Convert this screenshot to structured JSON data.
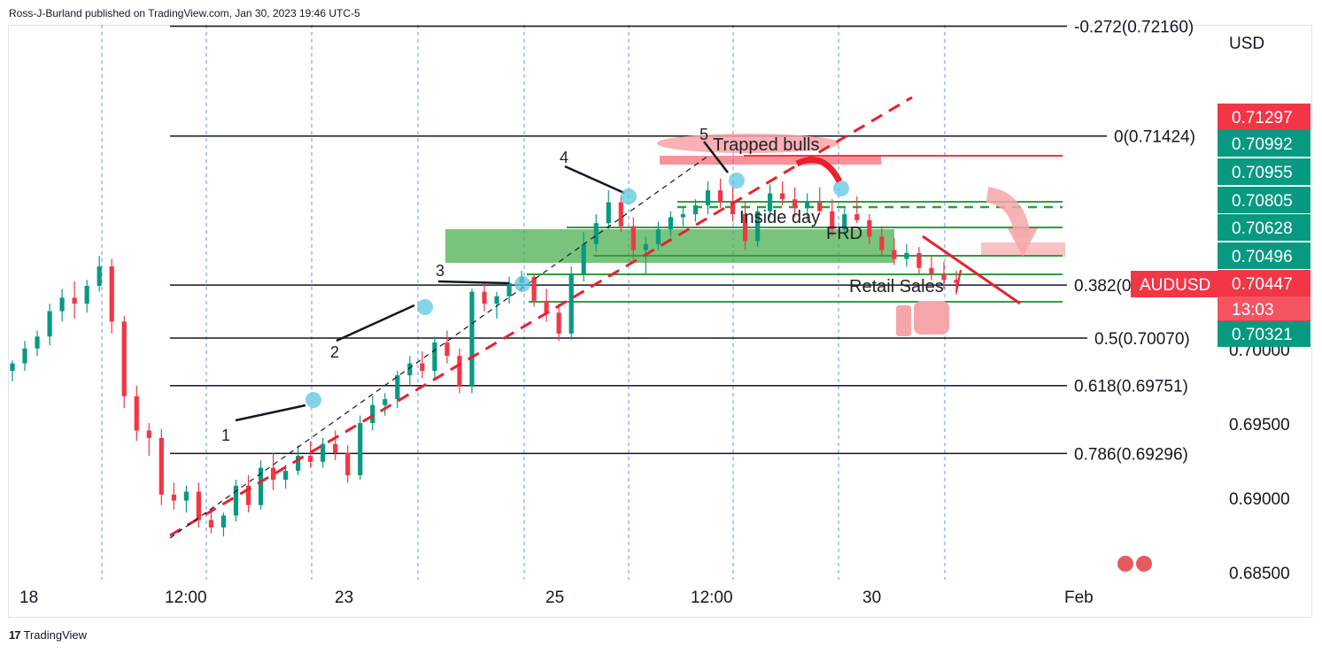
{
  "header": {
    "publisher": "Ross-J-Burland published on TradingView.com, Jan 30, 2023 19:46 UTC-5"
  },
  "footer": {
    "brand": "TradingView"
  },
  "chart_data": {
    "type": "candlestick",
    "symbol": "AUDUSD",
    "currency": "USD",
    "ylim": [
      0.6845,
      0.7217
    ],
    "y_ticks": [
      "0.68500",
      "0.69000",
      "0.69500",
      "0.70000"
    ],
    "x_ticks": [
      {
        "label": "18",
        "t": 0
      },
      {
        "label": "12:00",
        "t": 0.12
      },
      {
        "label": "23",
        "t": 0.25
      },
      {
        "label": "25",
        "t": 0.41
      },
      {
        "label": "12:00",
        "t": 0.53
      },
      {
        "label": "30",
        "t": 0.665
      },
      {
        "label": "Feb",
        "t": 0.82
      }
    ],
    "fib_levels": [
      {
        "label": "-0.272(0.72160)",
        "value": 0.7216
      },
      {
        "label": "0(0.71424)",
        "value": 0.71424
      },
      {
        "label": "0.382(0.70...",
        "value": 0.70425
      },
      {
        "label": "0.5(0.70070)",
        "value": 0.7007
      },
      {
        "label": "0.618(0.69751)",
        "value": 0.69751
      },
      {
        "label": "0.786(0.69296)",
        "value": 0.69296
      }
    ],
    "price_tags": [
      {
        "label": "0.71297",
        "value": 0.71297,
        "color": "#f23645"
      },
      {
        "label": "0.70992",
        "value": 0.70992,
        "color": "#089981"
      },
      {
        "label": "0.70955",
        "value": 0.70955,
        "color": "#089981"
      },
      {
        "label": "0.70805",
        "value": 0.70805,
        "color": "#089981"
      },
      {
        "label": "0.70628",
        "value": 0.70628,
        "color": "#089981"
      },
      {
        "label": "0.70496",
        "value": 0.70496,
        "color": "#089981"
      },
      {
        "label": "0.70447",
        "value": 0.70447,
        "color": "#f23645"
      },
      {
        "label": "0.70321",
        "value": 0.70321,
        "color": "#089981"
      }
    ],
    "countdown": "13:03",
    "annotations": [
      "Trapped bulls",
      "Inside day",
      "FRD",
      "Retail Sales"
    ],
    "wave_labels": [
      "1",
      "2",
      "3",
      "4",
      "5"
    ],
    "ohlc": [
      [
        0.6985,
        0.6992,
        0.6978,
        0.699
      ],
      [
        0.699,
        0.7005,
        0.6985,
        0.7
      ],
      [
        0.7,
        0.7012,
        0.6995,
        0.7008
      ],
      [
        0.7008,
        0.703,
        0.7002,
        0.7025
      ],
      [
        0.7025,
        0.704,
        0.7018,
        0.7034
      ],
      [
        0.7034,
        0.7045,
        0.702,
        0.703
      ],
      [
        0.703,
        0.7046,
        0.7024,
        0.7042
      ],
      [
        0.7042,
        0.7062,
        0.7038,
        0.7055
      ],
      [
        0.7055,
        0.706,
        0.701,
        0.7018
      ],
      [
        0.7018,
        0.7022,
        0.696,
        0.6968
      ],
      [
        0.6968,
        0.6975,
        0.6938,
        0.6945
      ],
      [
        0.6945,
        0.695,
        0.6928,
        0.694
      ],
      [
        0.694,
        0.6946,
        0.6895,
        0.6902
      ],
      [
        0.6902,
        0.691,
        0.6892,
        0.6898
      ],
      [
        0.6898,
        0.6908,
        0.689,
        0.6904
      ],
      [
        0.6904,
        0.691,
        0.688,
        0.6885
      ],
      [
        0.6885,
        0.6892,
        0.6876,
        0.688
      ],
      [
        0.688,
        0.689,
        0.6874,
        0.6888
      ],
      [
        0.6888,
        0.6912,
        0.6884,
        0.6908
      ],
      [
        0.6908,
        0.6915,
        0.689,
        0.6895
      ],
      [
        0.6895,
        0.6925,
        0.6892,
        0.692
      ],
      [
        0.692,
        0.693,
        0.6905,
        0.6912
      ],
      [
        0.6912,
        0.6922,
        0.6906,
        0.6918
      ],
      [
        0.6918,
        0.6935,
        0.6915,
        0.6928
      ],
      [
        0.6928,
        0.6938,
        0.692,
        0.6924
      ],
      [
        0.6924,
        0.694,
        0.692,
        0.6936
      ],
      [
        0.6936,
        0.6945,
        0.6925,
        0.693
      ],
      [
        0.693,
        0.6935,
        0.691,
        0.6915
      ],
      [
        0.6915,
        0.6955,
        0.6912,
        0.695
      ],
      [
        0.695,
        0.6968,
        0.6945,
        0.6962
      ],
      [
        0.6962,
        0.697,
        0.6955,
        0.6966
      ],
      [
        0.6966,
        0.6985,
        0.696,
        0.6982
      ],
      [
        0.6982,
        0.6995,
        0.6975,
        0.699
      ],
      [
        0.699,
        0.6998,
        0.698,
        0.6985
      ],
      [
        0.6985,
        0.7008,
        0.698,
        0.7004
      ],
      [
        0.7004,
        0.7012,
        0.699,
        0.6995
      ],
      [
        0.6995,
        0.7,
        0.697,
        0.6975
      ],
      [
        0.6975,
        0.704,
        0.697,
        0.7038
      ],
      [
        0.7038,
        0.7045,
        0.7025,
        0.703
      ],
      [
        0.703,
        0.7038,
        0.702,
        0.7035
      ],
      [
        0.7035,
        0.7048,
        0.703,
        0.7044
      ],
      [
        0.7044,
        0.7052,
        0.7038,
        0.7048
      ],
      [
        0.7048,
        0.705,
        0.7028,
        0.7032
      ],
      [
        0.7032,
        0.704,
        0.7018,
        0.7024
      ],
      [
        0.7024,
        0.703,
        0.7005,
        0.701
      ],
      [
        0.701,
        0.7055,
        0.7006,
        0.705
      ],
      [
        0.705,
        0.7078,
        0.7045,
        0.707
      ],
      [
        0.707,
        0.709,
        0.7065,
        0.7084
      ],
      [
        0.7084,
        0.7106,
        0.708,
        0.7098
      ],
      [
        0.7098,
        0.7102,
        0.7078,
        0.7082
      ],
      [
        0.7082,
        0.7088,
        0.706,
        0.7066
      ],
      [
        0.7066,
        0.7075,
        0.705,
        0.707
      ],
      [
        0.707,
        0.7085,
        0.7066,
        0.708
      ],
      [
        0.708,
        0.7092,
        0.7075,
        0.7088
      ],
      [
        0.7088,
        0.7095,
        0.7082,
        0.709
      ],
      [
        0.709,
        0.71,
        0.7085,
        0.7096
      ],
      [
        0.7096,
        0.7112,
        0.709,
        0.7106
      ],
      [
        0.7106,
        0.7114,
        0.7094,
        0.7098
      ],
      [
        0.7098,
        0.7108,
        0.7085,
        0.709
      ],
      [
        0.709,
        0.7098,
        0.7066,
        0.7072
      ],
      [
        0.7072,
        0.7095,
        0.7068,
        0.7092
      ],
      [
        0.7092,
        0.711,
        0.7088,
        0.7104
      ],
      [
        0.7104,
        0.7112,
        0.7096,
        0.71
      ],
      [
        0.71,
        0.7108,
        0.7088,
        0.7094
      ],
      [
        0.7094,
        0.7104,
        0.7086,
        0.7098
      ],
      [
        0.7098,
        0.7108,
        0.709,
        0.7092
      ],
      [
        0.7092,
        0.71,
        0.7075,
        0.708
      ],
      [
        0.708,
        0.7094,
        0.7076,
        0.709
      ],
      [
        0.709,
        0.7102,
        0.7084,
        0.7086
      ],
      [
        0.7086,
        0.709,
        0.707,
        0.7075
      ],
      [
        0.7075,
        0.7082,
        0.7062,
        0.7066
      ],
      [
        0.7066,
        0.7074,
        0.7056,
        0.706
      ],
      [
        0.706,
        0.707,
        0.7055,
        0.7064
      ],
      [
        0.7064,
        0.7068,
        0.705,
        0.7054
      ],
      [
        0.7054,
        0.7062,
        0.7046,
        0.705
      ],
      [
        0.705,
        0.7058,
        0.704,
        0.7046
      ],
      [
        0.7046,
        0.7052,
        0.7036,
        0.7044
      ]
    ]
  }
}
